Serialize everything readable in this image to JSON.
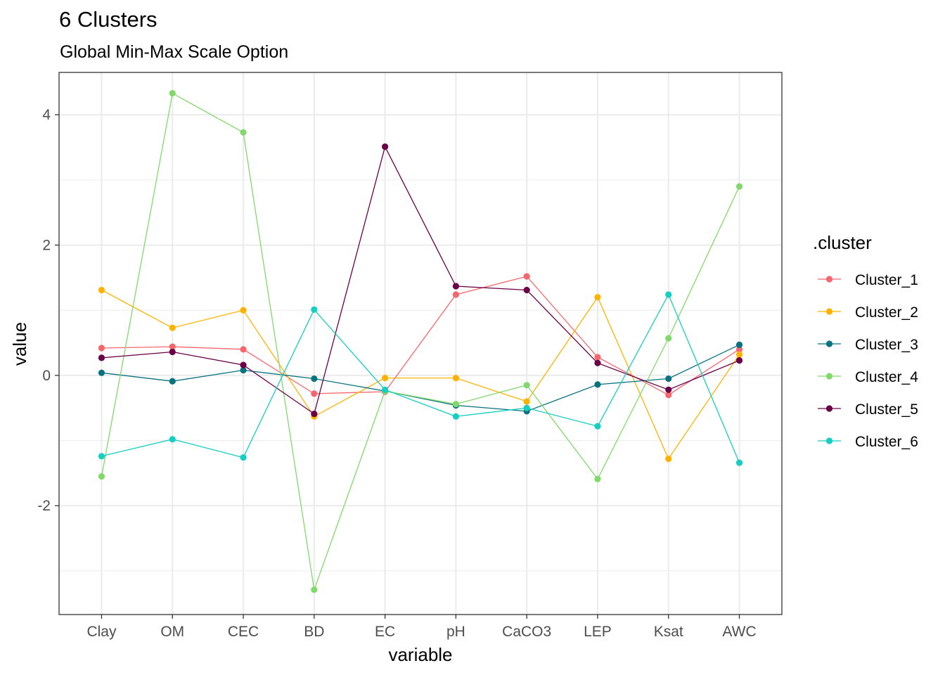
{
  "chart_data": {
    "type": "line",
    "title": "6 Clusters",
    "subtitle": "Global Min-Max Scale Option",
    "xlabel": "variable",
    "ylabel": "value",
    "categories": [
      "Clay",
      "OM",
      "CEC",
      "BD",
      "EC",
      "pH",
      "CaCO3",
      "LEP",
      "Ksat",
      "AWC"
    ],
    "yticks": [
      -2,
      0,
      2,
      4
    ],
    "ylim": [
      -3.67,
      4.65
    ],
    "grid": true,
    "legend_title": ".cluster",
    "legend_position": "right",
    "series": [
      {
        "name": "Cluster_1",
        "color": "#F8666D",
        "values": [
          0.42,
          0.44,
          0.4,
          -0.28,
          -0.25,
          1.24,
          1.52,
          0.28,
          -0.3,
          0.4
        ]
      },
      {
        "name": "Cluster_2",
        "color": "#FFB300",
        "values": [
          1.31,
          0.73,
          1.0,
          -0.63,
          -0.04,
          -0.04,
          -0.4,
          1.2,
          -1.28,
          0.32
        ]
      },
      {
        "name": "Cluster_3",
        "color": "#08737F",
        "values": [
          0.04,
          -0.09,
          0.08,
          -0.05,
          -0.24,
          -0.46,
          -0.55,
          -0.14,
          -0.05,
          0.47
        ]
      },
      {
        "name": "Cluster_4",
        "color": "#82D96B",
        "values": [
          -1.55,
          4.33,
          3.73,
          -3.29,
          -0.24,
          -0.44,
          -0.15,
          -1.59,
          0.57,
          2.9
        ]
      },
      {
        "name": "Cluster_5",
        "color": "#6A0047",
        "values": [
          0.27,
          0.36,
          0.16,
          -0.59,
          3.51,
          1.37,
          1.31,
          0.19,
          -0.22,
          0.23
        ]
      },
      {
        "name": "Cluster_6",
        "color": "#15CFC1",
        "values": [
          -1.24,
          -0.98,
          -1.26,
          1.01,
          -0.22,
          -0.63,
          -0.5,
          -0.78,
          1.24,
          -1.34
        ]
      }
    ]
  }
}
